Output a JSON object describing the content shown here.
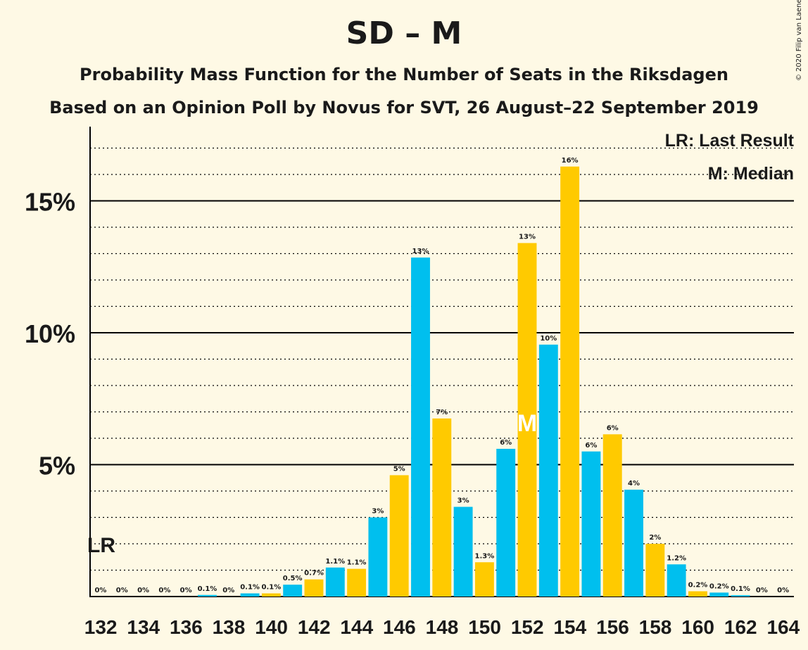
{
  "title": "SD – M",
  "subtitle1": "Probability Mass Function for the Number of Seats in the Riksdagen",
  "subtitle2": "Based on an Opinion Poll by Novus for SVT, 26 August–22 September 2019",
  "copyright": "© 2020 Filip van Laenen",
  "legend": {
    "lr": "LR: Last Result",
    "m": "M: Median"
  },
  "markers": {
    "lr_label": "LR",
    "lr_seat": 132,
    "median_label": "M",
    "median_seat": 152
  },
  "colors": {
    "blue": "#00BFEE",
    "yellow": "#FFCA00",
    "background": "#FEF9E5"
  },
  "chart_data": {
    "type": "bar",
    "xlabel": "",
    "ylabel": "",
    "ylim": [
      0,
      17.8
    ],
    "yticks": [
      5,
      10,
      15
    ],
    "ytick_labels": [
      "5%",
      "10%",
      "15%"
    ],
    "x_tick_labels": [
      "132",
      "134",
      "136",
      "138",
      "140",
      "142",
      "144",
      "146",
      "148",
      "150",
      "152",
      "154",
      "156",
      "158",
      "160",
      "162",
      "164"
    ],
    "grid": true,
    "bars": [
      {
        "seat": 132,
        "value": 0,
        "label": "0%",
        "color": "blue"
      },
      {
        "seat": 133,
        "value": 0,
        "label": "0%",
        "color": "yellow"
      },
      {
        "seat": 134,
        "value": 0,
        "label": "0%",
        "color": "blue"
      },
      {
        "seat": 135,
        "value": 0,
        "label": "0%",
        "color": "yellow"
      },
      {
        "seat": 136,
        "value": 0,
        "label": "0%",
        "color": "blue"
      },
      {
        "seat": 137,
        "value": 0.06,
        "label": "0.1%",
        "color": "blue"
      },
      {
        "seat": 138,
        "value": 0,
        "label": "0%",
        "color": "yellow"
      },
      {
        "seat": 139,
        "value": 0.12,
        "label": "0.1%",
        "color": "blue"
      },
      {
        "seat": 140,
        "value": 0.12,
        "label": "0.1%",
        "color": "yellow"
      },
      {
        "seat": 141,
        "value": 0.45,
        "label": "0.5%",
        "color": "blue"
      },
      {
        "seat": 142,
        "value": 0.65,
        "label": "0.7%",
        "color": "yellow"
      },
      {
        "seat": 143,
        "value": 1.1,
        "label": "1.1%",
        "color": "blue"
      },
      {
        "seat": 144,
        "value": 1.05,
        "label": "1.1%",
        "color": "yellow"
      },
      {
        "seat": 145,
        "value": 3.0,
        "label": "3%",
        "color": "blue"
      },
      {
        "seat": 146,
        "value": 4.6,
        "label": "5%",
        "color": "yellow"
      },
      {
        "seat": 147,
        "value": 12.85,
        "label": "13%",
        "color": "blue"
      },
      {
        "seat": 148,
        "value": 6.75,
        "label": "7%",
        "color": "yellow"
      },
      {
        "seat": 149,
        "value": 3.4,
        "label": "3%",
        "color": "blue"
      },
      {
        "seat": 150,
        "value": 1.3,
        "label": "1.3%",
        "color": "yellow"
      },
      {
        "seat": 151,
        "value": 5.6,
        "label": "6%",
        "color": "blue"
      },
      {
        "seat": 152,
        "value": 13.4,
        "label": "13%",
        "color": "yellow"
      },
      {
        "seat": 153,
        "value": 9.55,
        "label": "10%",
        "color": "blue"
      },
      {
        "seat": 154,
        "value": 16.3,
        "label": "16%",
        "color": "yellow"
      },
      {
        "seat": 155,
        "value": 5.5,
        "label": "6%",
        "color": "blue"
      },
      {
        "seat": 156,
        "value": 6.15,
        "label": "6%",
        "color": "yellow"
      },
      {
        "seat": 157,
        "value": 4.05,
        "label": "4%",
        "color": "blue"
      },
      {
        "seat": 158,
        "value": 2.0,
        "label": "2%",
        "color": "yellow"
      },
      {
        "seat": 159,
        "value": 1.22,
        "label": "1.2%",
        "color": "blue"
      },
      {
        "seat": 160,
        "value": 0.2,
        "label": "0.2%",
        "color": "yellow"
      },
      {
        "seat": 161,
        "value": 0.15,
        "label": "0.2%",
        "color": "blue"
      },
      {
        "seat": 162,
        "value": 0.05,
        "label": "0.1%",
        "color": "blue"
      },
      {
        "seat": 163,
        "value": 0,
        "label": "0%",
        "color": "yellow"
      },
      {
        "seat": 164,
        "value": 0,
        "label": "0%",
        "color": "blue"
      }
    ]
  }
}
